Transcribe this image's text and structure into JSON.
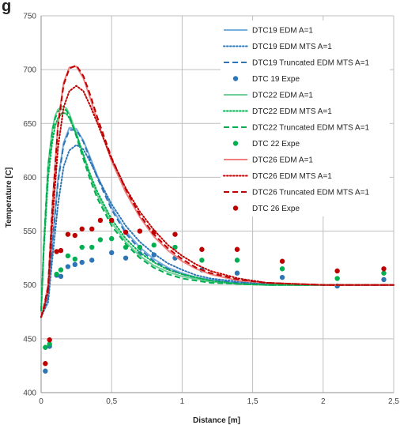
{
  "header_fragment": "g",
  "chart_data": {
    "type": "line",
    "title": "",
    "xlabel": "Distance [m]",
    "ylabel": "Temperature [C]",
    "xlim": [
      0,
      2.5
    ],
    "ylim": [
      400,
      750
    ],
    "x_ticks": [
      0,
      0.5,
      1,
      1.5,
      2,
      2.5
    ],
    "x_tick_labels": [
      "0",
      "0,5",
      "1",
      "1,5",
      "2",
      "2,5"
    ],
    "y_ticks": [
      400,
      450,
      500,
      550,
      600,
      650,
      700,
      750
    ],
    "y_tick_labels": [
      "400",
      "450",
      "500",
      "550",
      "600",
      "650",
      "700",
      "750"
    ],
    "grid": true,
    "legend_position": "top-right",
    "series": [
      {
        "name": "DTC19 EDM A=1",
        "kind": "line",
        "style": "solid",
        "color": "#7aaedb",
        "x": [
          0,
          0.02,
          0.05,
          0.08,
          0.12,
          0.16,
          0.2,
          0.25,
          0.3,
          0.35,
          0.4,
          0.5,
          0.6,
          0.7,
          0.8,
          0.9,
          1.0,
          1.1,
          1.2,
          1.4,
          1.6,
          1.8,
          2.0,
          2.2,
          2.5
        ],
        "y": [
          470,
          478,
          488,
          540,
          598,
          632,
          646,
          645,
          634,
          618,
          601,
          572,
          550,
          535,
          524,
          516,
          511,
          507,
          505,
          502,
          501,
          500,
          500,
          500,
          500
        ]
      },
      {
        "name": "DTC19 EDM MTS A=1",
        "kind": "line",
        "style": "dotted",
        "color": "#2e75b6",
        "x": [
          0,
          0.02,
          0.05,
          0.08,
          0.12,
          0.16,
          0.2,
          0.25,
          0.3,
          0.35,
          0.4,
          0.5,
          0.6,
          0.7,
          0.8,
          0.9,
          1.0,
          1.1,
          1.2,
          1.4,
          1.6,
          1.8,
          2.0,
          2.2,
          2.5
        ],
        "y": [
          470,
          476,
          484,
          525,
          575,
          610,
          625,
          630,
          626,
          614,
          600,
          575,
          555,
          540,
          529,
          520,
          514,
          509,
          506,
          503,
          501,
          500,
          500,
          500,
          500
        ]
      },
      {
        "name": "DTC19 Truncated EDM MTS A=1",
        "kind": "line",
        "style": "dashed",
        "color": "#2e75b6",
        "x": [
          0,
          0.02,
          0.05,
          0.08,
          0.12,
          0.16,
          0.2,
          0.25,
          0.3,
          0.35,
          0.4,
          0.5,
          0.6,
          0.7,
          0.8,
          0.9,
          1.0,
          1.1,
          1.2,
          1.4,
          1.6,
          1.8,
          2.0,
          2.2,
          2.5
        ],
        "y": [
          470,
          478,
          487,
          538,
          596,
          630,
          644,
          644,
          633,
          616,
          599,
          570,
          548,
          533,
          522,
          515,
          510,
          506,
          504,
          502,
          501,
          500,
          500,
          500,
          500
        ]
      },
      {
        "name": "DTC 19 Expe",
        "kind": "scatter",
        "color": "#2e75b6",
        "x": [
          0.03,
          0.06,
          0.11,
          0.14,
          0.19,
          0.24,
          0.29,
          0.36,
          0.5,
          0.6,
          0.7,
          0.8,
          0.95,
          1.14,
          1.39,
          1.71,
          2.1,
          2.43
        ],
        "y": [
          420,
          443,
          509,
          508,
          517,
          519,
          521,
          523,
          530,
          525,
          529,
          528,
          525,
          514,
          511,
          507,
          499,
          505
        ]
      },
      {
        "name": "DTC22 EDM A=1",
        "kind": "line",
        "style": "solid",
        "color": "#6fcf97",
        "x": [
          0,
          0.02,
          0.05,
          0.08,
          0.1,
          0.12,
          0.15,
          0.18,
          0.2,
          0.25,
          0.3,
          0.35,
          0.4,
          0.5,
          0.6,
          0.7,
          0.8,
          0.9,
          1.0,
          1.2,
          1.4,
          1.6,
          1.8,
          2.0,
          2.5
        ],
        "y": [
          476,
          540,
          612,
          645,
          657,
          663,
          666,
          664,
          659,
          641,
          620,
          600,
          583,
          558,
          540,
          527,
          518,
          512,
          508,
          503,
          501,
          500,
          500,
          500,
          500
        ]
      },
      {
        "name": "DTC22 EDM MTS A=1",
        "kind": "line",
        "style": "dotted",
        "color": "#00b050",
        "x": [
          0,
          0.02,
          0.05,
          0.08,
          0.1,
          0.12,
          0.15,
          0.18,
          0.2,
          0.25,
          0.3,
          0.35,
          0.4,
          0.5,
          0.6,
          0.7,
          0.8,
          0.9,
          1.0,
          1.2,
          1.4,
          1.6,
          1.8,
          2.0,
          2.5
        ],
        "y": [
          476,
          535,
          600,
          634,
          648,
          655,
          660,
          659,
          655,
          640,
          621,
          602,
          586,
          561,
          543,
          530,
          521,
          514,
          510,
          504,
          501,
          500,
          500,
          500,
          500
        ]
      },
      {
        "name": "DTC22 Truncated EDM MTS A=1",
        "kind": "line",
        "style": "dashed",
        "color": "#00b050",
        "x": [
          0,
          0.02,
          0.05,
          0.08,
          0.1,
          0.12,
          0.15,
          0.18,
          0.2,
          0.25,
          0.3,
          0.35,
          0.4,
          0.5,
          0.6,
          0.7,
          0.8,
          0.9,
          1.0,
          1.2,
          1.4,
          1.6,
          1.8,
          2.0,
          2.5
        ],
        "y": [
          476,
          540,
          610,
          643,
          655,
          661,
          664,
          662,
          657,
          638,
          617,
          597,
          580,
          555,
          538,
          525,
          516,
          510,
          506,
          502,
          501,
          500,
          500,
          500,
          500
        ]
      },
      {
        "name": "DTC 22 Expe",
        "kind": "scatter",
        "color": "#00b050",
        "x": [
          0.03,
          0.06,
          0.11,
          0.14,
          0.19,
          0.24,
          0.29,
          0.36,
          0.42,
          0.5,
          0.6,
          0.7,
          0.8,
          0.95,
          1.14,
          1.39,
          1.71,
          2.1,
          2.43
        ],
        "y": [
          442,
          445,
          510,
          514,
          527,
          524,
          535,
          535,
          542,
          543,
          535,
          535,
          537,
          535,
          523,
          523,
          515,
          506,
          511
        ]
      },
      {
        "name": "DTC26 EDM A=1",
        "kind": "line",
        "style": "solid",
        "color": "#f08080",
        "x": [
          0,
          0.02,
          0.05,
          0.08,
          0.12,
          0.16,
          0.2,
          0.25,
          0.3,
          0.35,
          0.4,
          0.5,
          0.6,
          0.7,
          0.8,
          0.9,
          1.0,
          1.1,
          1.2,
          1.4,
          1.6,
          1.8,
          2.0,
          2.2,
          2.5
        ],
        "y": [
          470,
          480,
          500,
          575,
          650,
          688,
          702,
          703,
          692,
          673,
          652,
          615,
          586,
          563,
          545,
          532,
          522,
          515,
          510,
          504,
          502,
          501,
          500,
          500,
          500
        ]
      },
      {
        "name": "DTC26 EDM MTS A=1",
        "kind": "line",
        "style": "dotted",
        "color": "#c00000",
        "x": [
          0,
          0.02,
          0.05,
          0.08,
          0.12,
          0.16,
          0.2,
          0.25,
          0.3,
          0.35,
          0.4,
          0.5,
          0.6,
          0.7,
          0.8,
          0.9,
          1.0,
          1.1,
          1.2,
          1.4,
          1.6,
          1.8,
          2.0,
          2.2,
          2.5
        ],
        "y": [
          470,
          478,
          495,
          560,
          628,
          665,
          680,
          685,
          680,
          666,
          650,
          617,
          590,
          568,
          551,
          537,
          527,
          519,
          513,
          506,
          502,
          501,
          500,
          500,
          500
        ]
      },
      {
        "name": "DTC26 Truncated EDM MTS A=1",
        "kind": "line",
        "style": "dashed",
        "color": "#c00000",
        "x": [
          0,
          0.02,
          0.05,
          0.08,
          0.12,
          0.16,
          0.2,
          0.25,
          0.3,
          0.35,
          0.4,
          0.5,
          0.6,
          0.7,
          0.8,
          0.9,
          1.0,
          1.1,
          1.2,
          1.4,
          1.6,
          1.8,
          2.0,
          2.2,
          2.5
        ],
        "y": [
          470,
          480,
          499,
          573,
          648,
          686,
          701,
          704,
          694,
          676,
          655,
          618,
          589,
          565,
          547,
          534,
          524,
          516,
          511,
          505,
          502,
          501,
          500,
          500,
          500
        ]
      },
      {
        "name": "DTC 26 Expe",
        "kind": "scatter",
        "color": "#c00000",
        "x": [
          0.03,
          0.06,
          0.11,
          0.14,
          0.19,
          0.24,
          0.29,
          0.36,
          0.42,
          0.5,
          0.6,
          0.7,
          0.8,
          0.95,
          1.14,
          1.39,
          1.71,
          2.1,
          2.43
        ],
        "y": [
          427,
          449,
          531,
          532,
          547,
          546,
          552,
          552,
          560,
          560,
          549,
          550,
          549,
          547,
          533,
          533,
          522,
          513,
          515
        ]
      }
    ]
  }
}
